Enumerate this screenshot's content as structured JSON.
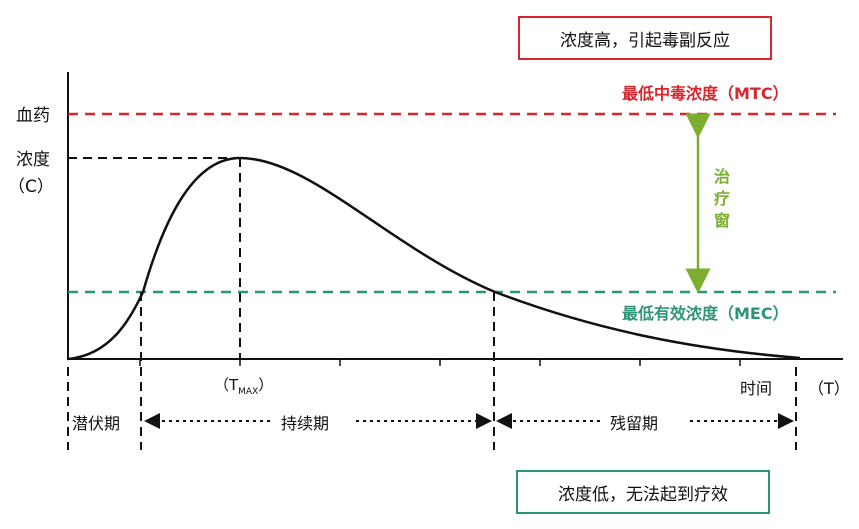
{
  "y_axis": {
    "line1": "血药",
    "line2": "浓度",
    "line3": "（C）"
  },
  "x_axis": {
    "time_label": "时间",
    "unit_label": "（T）",
    "tmax_prefix": "（T",
    "tmax_sub": "MAX",
    "tmax_suffix": "）"
  },
  "boxes": {
    "high": "浓度高，引起毒副反应",
    "low": "浓度低，无法起到疗效"
  },
  "thresholds": {
    "mtc": "最低中毒浓度（MTC）",
    "mec": "最低有效浓度（MEC）",
    "window": "治疗窗"
  },
  "phases": {
    "latent": "潜伏期",
    "duration": "持续期",
    "residual": "残留期"
  },
  "colors": {
    "mtc": "#d7262e",
    "mec": "#2e9479",
    "window": "#7cae2f",
    "curve": "#111111"
  }
}
